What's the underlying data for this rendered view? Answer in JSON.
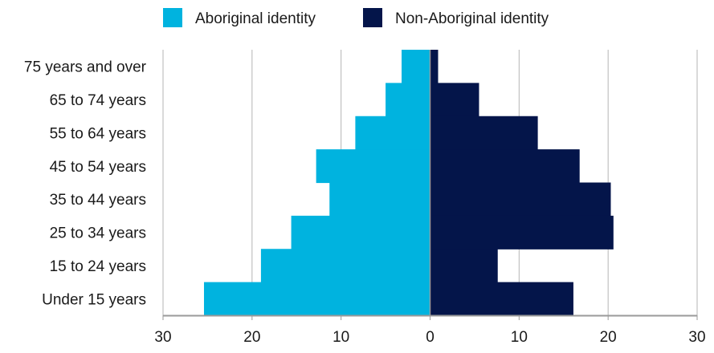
{
  "chart_data": {
    "type": "bar",
    "orientation": "horizontal",
    "style": "population-pyramid",
    "categories": [
      "75 years and over",
      "65 to 74 years",
      "55 to 64 years",
      "45 to 54 years",
      "35 to 44 years",
      "25 to 34 years",
      "15 to 24 years",
      "Under 15 years"
    ],
    "series": [
      {
        "name": "Aboriginal identity",
        "side": "left",
        "color": "#00b3df",
        "values": [
          3.2,
          5.0,
          8.4,
          12.8,
          11.3,
          15.6,
          19.0,
          25.4
        ]
      },
      {
        "name": "Non-Aboriginal identity",
        "side": "right",
        "color": "#04154a",
        "values": [
          0.9,
          5.5,
          12.1,
          16.8,
          20.3,
          20.6,
          7.6,
          16.1
        ]
      }
    ],
    "x_ticks": [
      "30",
      "20",
      "10",
      "0",
      "10",
      "20",
      "30"
    ],
    "xlim": [
      -30,
      30
    ],
    "grid": true,
    "legend_position": "top-center",
    "title": "",
    "xlabel": "",
    "ylabel": ""
  }
}
